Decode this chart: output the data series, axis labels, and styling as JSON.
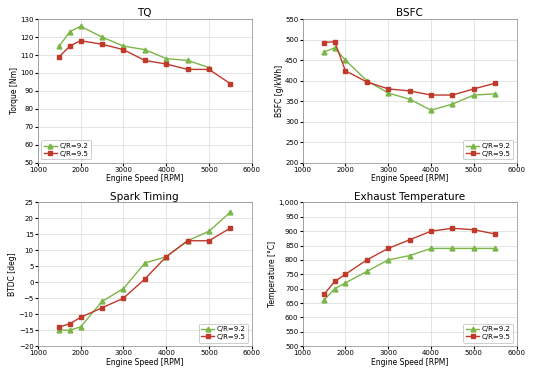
{
  "rpm": [
    1500,
    1750,
    2000,
    2500,
    3000,
    3500,
    4000,
    4500,
    5000,
    5500
  ],
  "tq": {
    "title": "TQ",
    "ylabel": "Torque [Nm]",
    "ylim": [
      50,
      130
    ],
    "yticks": [
      50,
      60,
      70,
      80,
      90,
      100,
      110,
      120,
      130
    ],
    "cr92": [
      115,
      123,
      126,
      120,
      115,
      113,
      108,
      107,
      103,
      null
    ],
    "cr95": [
      109,
      115,
      118,
      116,
      113,
      107,
      105,
      102,
      102,
      94
    ],
    "legend_loc": "lower left"
  },
  "bsfc": {
    "title": "BSFC",
    "ylabel": "BSFC [g/kWh]",
    "ylim": [
      200,
      550
    ],
    "yticks": [
      200,
      250,
      300,
      350,
      400,
      450,
      500,
      550
    ],
    "cr92": [
      470,
      480,
      450,
      400,
      370,
      355,
      328,
      343,
      365,
      368
    ],
    "cr95": [
      493,
      495,
      424,
      397,
      380,
      375,
      365,
      365,
      380,
      394
    ],
    "legend_loc": "lower right"
  },
  "spark": {
    "title": "Spark Timing",
    "ylabel": "BTDC [deg]",
    "ylim": [
      -20,
      25
    ],
    "yticks": [
      -20,
      -15,
      -10,
      -5,
      0,
      5,
      10,
      15,
      20,
      25
    ],
    "cr92": [
      -15,
      -15,
      -14,
      -6,
      -2,
      6,
      8,
      13,
      16,
      22
    ],
    "cr95": [
      -14,
      -13,
      -11,
      -8,
      -5,
      1,
      8,
      13,
      13,
      17
    ],
    "legend_loc": "lower right"
  },
  "exhaust": {
    "title": "Exhaust Temperature",
    "ylabel": "Temperature [°C]",
    "ylim": [
      500,
      1000
    ],
    "yticks": [
      500,
      550,
      600,
      650,
      700,
      750,
      800,
      850,
      900,
      950,
      1000
    ],
    "cr92": [
      660,
      700,
      720,
      760,
      800,
      815,
      840,
      840,
      840,
      840
    ],
    "cr95": [
      680,
      725,
      750,
      800,
      840,
      870,
      900,
      910,
      905,
      890
    ],
    "legend_loc": "lower right"
  },
  "color_cr92": "#7ab648",
  "color_cr95": "#c0392b",
  "xlabel": "Engine Speed [RPM]",
  "xlim": [
    1000,
    6000
  ],
  "xticks": [
    1000,
    2000,
    3000,
    4000,
    5000,
    6000
  ]
}
